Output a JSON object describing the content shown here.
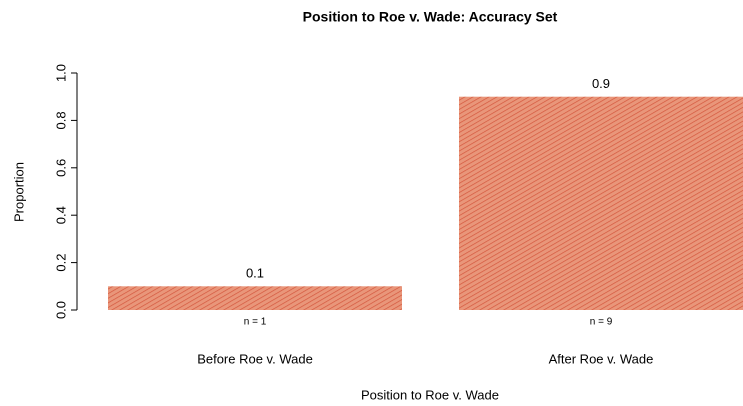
{
  "chart_data": {
    "type": "bar",
    "title": "Position to Roe v. Wade: Accuracy Set",
    "xlabel": "Position to Roe v. Wade",
    "ylabel": "Proportion",
    "categories": [
      "Before Roe v. Wade",
      "After Roe v. Wade"
    ],
    "values": [
      0.1,
      0.9
    ],
    "bar_notes": [
      "n = 1",
      "n = 9"
    ],
    "color": "#e9967a",
    "ylim": [
      0,
      1
    ],
    "yticks": [
      {
        "value": 0,
        "label": "0.0"
      },
      0.2,
      0.4,
      0.6,
      0.8,
      {
        "value": 1,
        "label": "1.0"
      }
    ],
    "grid": false
  }
}
